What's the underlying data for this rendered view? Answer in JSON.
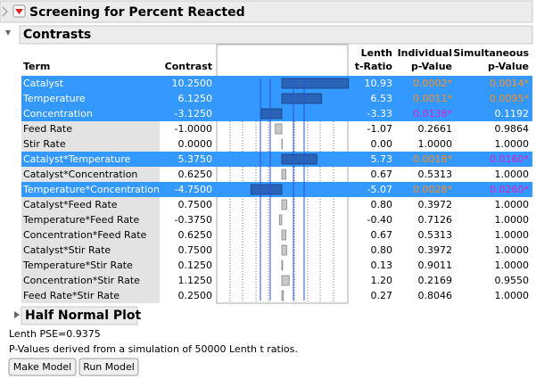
{
  "title": "Screening for Percent Reacted",
  "contrasts": {
    "title": "Contrasts",
    "columns": [
      [
        "Term"
      ],
      [
        "Contrast"
      ],
      [
        "Lenth",
        "t-Ratio"
      ],
      [
        "Individual",
        "p-Value"
      ],
      [
        "Simultaneous",
        "p-Value"
      ]
    ],
    "selected_rows": [
      0,
      1,
      2,
      5,
      7
    ],
    "rows": [
      [
        "Catalyst",
        "10.2500",
        "10.93",
        "0.0002*",
        "0.0014*"
      ],
      [
        "Temperature",
        "6.1250",
        "6.53",
        "0.0011*",
        "0.0095*"
      ],
      [
        "Concentration",
        "-3.1250",
        "-3.33",
        "0.0138*",
        "0.1192"
      ],
      [
        "Feed Rate",
        "-1.0000",
        "-1.07",
        "0.2661",
        "0.9864"
      ],
      [
        "Stir Rate",
        "0.0000",
        "0.00",
        "1.0000",
        "1.0000"
      ],
      [
        "Catalyst*Temperature",
        "5.3750",
        "5.73",
        "0.0018*",
        "0.0160*"
      ],
      [
        "Catalyst*Concentration",
        "0.6250",
        "0.67",
        "0.5313",
        "1.0000"
      ],
      [
        "Temperature*Concentration",
        "-4.7500",
        "-5.07",
        "0.0028*",
        "0.0260*"
      ],
      [
        "Catalyst*Feed Rate",
        "0.7500",
        "0.80",
        "0.3972",
        "1.0000"
      ],
      [
        "Temperature*Feed Rate",
        "-0.3750",
        "-0.40",
        "0.7126",
        "1.0000"
      ],
      [
        "Concentration*Feed Rate",
        "0.6250",
        "0.67",
        "0.5313",
        "1.0000"
      ],
      [
        "Catalyst*Stir Rate",
        "0.7500",
        "0.80",
        "0.3972",
        "1.0000"
      ],
      [
        "Temperature*Stir Rate",
        "0.1250",
        "0.13",
        "0.9011",
        "1.0000"
      ],
      [
        "Concentration*Stir Rate",
        "1.1250",
        "1.20",
        "0.2169",
        "0.9550"
      ],
      [
        "Feed Rate*Stir Rate",
        "0.2500",
        "0.27",
        "0.8046",
        "1.0000"
      ]
    ]
  },
  "half_normal_plot": {
    "title": "Half Normal Plot"
  },
  "notes": [
    "Lenth PSE=0.9375",
    "P-Values derived from a simulation of 50000 Lenth t ratios."
  ],
  "buttons": [
    "Make Model",
    "Run Model"
  ]
}
